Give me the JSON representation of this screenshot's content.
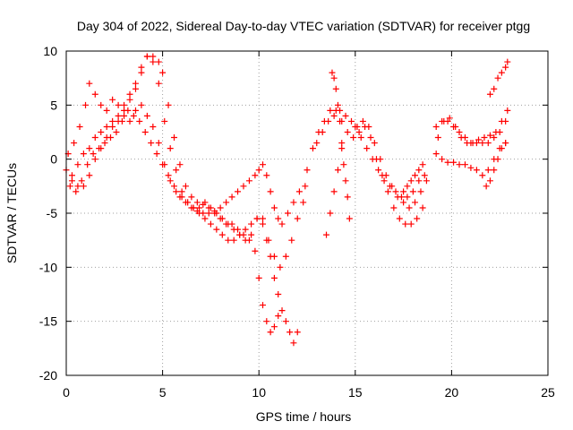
{
  "chart_data": {
    "type": "scatter",
    "title": "Day 304 of 2022, Sidereal Day-to-day VTEC variation (SDTVAR) for receiver ptgg",
    "xlabel": "GPS time / hours",
    "ylabel": "SDTVAR / TECUs",
    "xlim": [
      0,
      25
    ],
    "ylim": [
      -20,
      10
    ],
    "xticks": [
      0,
      5,
      10,
      15,
      20,
      25
    ],
    "yticks": [
      -20,
      -15,
      -10,
      -5,
      0,
      5,
      10
    ],
    "grid": true,
    "legend": "none",
    "marker": "+",
    "color": "#ff0000",
    "series": [
      {
        "x": [
          0.0,
          0.3,
          0.6,
          0.9,
          1.2,
          1.5,
          1.8,
          2.1,
          2.4,
          2.7,
          3.0,
          3.3,
          3.6,
          3.9,
          4.2,
          4.5,
          4.8,
          5.0,
          5.3,
          5.6,
          5.9,
          6.2,
          6.5,
          6.8,
          7.1,
          7.4,
          7.7,
          8.0,
          8.3,
          8.6,
          8.9,
          9.2,
          9.5,
          9.8,
          10.0,
          10.2,
          10.4,
          10.6,
          10.8,
          11.0
        ],
        "y": [
          -1.0,
          -2.0,
          -2.5,
          -2.5,
          -1.5,
          0.0,
          1.0,
          2.0,
          3.0,
          3.5,
          4.5,
          5.5,
          6.5,
          8.5,
          9.5,
          9.5,
          9.0,
          8.0,
          5.0,
          2.0,
          -0.5,
          -2.5,
          -3.5,
          -4.0,
          -4.2,
          -4.5,
          -5.0,
          -5.5,
          -6.0,
          -6.0,
          -6.5,
          -7.0,
          -7.5,
          -8.5,
          -11.0,
          -13.5,
          -15.0,
          -16.0,
          -15.5,
          -14.5
        ]
      },
      {
        "x": [
          0.1,
          0.4,
          0.7,
          1.0,
          1.2,
          1.5,
          1.8,
          2.1,
          2.4,
          2.7,
          3.0,
          3.3,
          3.6,
          3.9,
          4.2,
          4.5,
          4.8,
          5.1,
          5.4,
          5.7,
          6.0,
          6.3,
          6.6,
          6.9,
          7.2,
          7.5,
          7.8,
          8.1,
          8.4,
          8.7,
          9.0,
          9.3,
          9.6,
          9.9,
          10.2,
          10.4,
          10.6,
          10.8,
          11.0,
          11.2,
          11.4,
          11.6,
          11.8,
          12.0
        ],
        "y": [
          0.5,
          1.5,
          3.0,
          5.0,
          7.0,
          6.0,
          5.0,
          4.5,
          5.5,
          5.0,
          4.0,
          3.5,
          4.5,
          5.0,
          4.0,
          3.0,
          1.5,
          -0.5,
          -2.0,
          -3.0,
          -3.5,
          -4.0,
          -4.5,
          -4.5,
          -4.0,
          -4.5,
          -5.0,
          -5.5,
          -6.0,
          -6.5,
          -7.0,
          -7.5,
          -7.0,
          -5.5,
          -5.5,
          -7.5,
          -9.0,
          -11.0,
          -12.5,
          -14.0,
          -15.0,
          -16.0,
          -17.0,
          -16.0
        ]
      },
      {
        "x": [
          0.2,
          0.5,
          0.8,
          1.1,
          1.4,
          1.7,
          2.0,
          2.3,
          2.6,
          2.9,
          3.2,
          3.5,
          3.8,
          4.1,
          4.4,
          4.7,
          5.0,
          5.3,
          5.6,
          5.9,
          6.2,
          6.5,
          6.8,
          7.1,
          7.4,
          7.7,
          8.0,
          8.3,
          8.6,
          8.9,
          9.2,
          9.5,
          9.8,
          10.0,
          10.2,
          10.4,
          10.6,
          10.8,
          11.0,
          11.2,
          11.5,
          11.8,
          12.1,
          12.4
        ],
        "y": [
          -2.5,
          -3.0,
          -2.0,
          -0.5,
          0.5,
          1.0,
          1.5,
          2.0,
          2.5,
          3.5,
          4.5,
          4.0,
          3.5,
          2.5,
          1.5,
          0.5,
          -0.5,
          -1.5,
          -2.5,
          -3.5,
          -4.0,
          -4.5,
          -4.8,
          -5.0,
          -5.0,
          -4.8,
          -4.5,
          -4.0,
          -3.5,
          -3.0,
          -2.5,
          -2.0,
          -1.5,
          -1.0,
          -0.5,
          -1.5,
          -3.0,
          -4.5,
          -5.5,
          -6.0,
          -5.0,
          -4.0,
          -3.0,
          -2.5
        ]
      },
      {
        "x": [
          0.3,
          0.6,
          0.9,
          1.2,
          1.5,
          1.8,
          2.1,
          2.4,
          2.7,
          3.0,
          3.3,
          3.6,
          3.9,
          4.2,
          4.5,
          4.8,
          5.1,
          5.4,
          5.7,
          6.0,
          6.3,
          6.6,
          6.9,
          7.2,
          7.5,
          7.8,
          8.1,
          8.4,
          8.7,
          9.0,
          9.3,
          9.6,
          9.9,
          10.2,
          10.5,
          10.8,
          11.1,
          11.4,
          11.7,
          12.0,
          12.3
        ],
        "y": [
          -1.5,
          -0.5,
          0.5,
          1.0,
          2.0,
          2.5,
          3.0,
          3.5,
          4.0,
          5.0,
          6.0,
          7.0,
          8.0,
          9.5,
          9.0,
          7.0,
          3.5,
          1.0,
          -1.0,
          -3.0,
          -4.0,
          -4.5,
          -5.0,
          -5.5,
          -6.0,
          -6.5,
          -7.0,
          -7.5,
          -7.5,
          -7.0,
          -6.5,
          -6.0,
          -5.5,
          -6.0,
          -7.5,
          -9.0,
          -10.0,
          -9.0,
          -7.5,
          -5.5,
          -4.0
        ]
      },
      {
        "x": [
          12.5,
          12.8,
          13.1,
          13.4,
          13.7,
          14.0,
          14.3,
          14.6,
          14.9,
          15.2,
          15.5,
          15.8,
          16.1,
          16.4,
          16.7,
          17.0,
          17.3,
          17.6,
          17.9,
          18.2,
          18.5
        ],
        "y": [
          -1.0,
          1.0,
          2.5,
          3.5,
          4.5,
          4.5,
          3.5,
          2.5,
          2.0,
          2.5,
          3.0,
          2.0,
          0.0,
          -1.5,
          -3.0,
          -4.5,
          -5.5,
          -6.0,
          -6.0,
          -5.5,
          -4.5
        ]
      },
      {
        "x": [
          13.0,
          13.3,
          13.6,
          13.9,
          14.2,
          14.5,
          14.8,
          15.1,
          15.4,
          15.7,
          16.0,
          16.3,
          16.6,
          16.9,
          17.2,
          17.5,
          17.8,
          18.1,
          18.4,
          18.7
        ],
        "y": [
          1.5,
          2.5,
          3.5,
          4.0,
          4.5,
          4.0,
          3.5,
          3.0,
          3.5,
          3.0,
          1.5,
          0.0,
          -1.5,
          -2.5,
          -3.5,
          -4.0,
          -4.5,
          -4.0,
          -3.0,
          -2.0
        ]
      },
      {
        "x": [
          13.5,
          13.7,
          13.9,
          14.1,
          14.3
        ],
        "y": [
          -7.0,
          -5.0,
          -3.0,
          -1.0,
          1.0
        ]
      },
      {
        "x": [
          13.8,
          13.9,
          14.0,
          14.1,
          14.2,
          14.3,
          14.4,
          14.5,
          14.6,
          14.7
        ],
        "y": [
          8.0,
          7.5,
          6.5,
          5.0,
          3.5,
          1.5,
          -0.5,
          -2.0,
          -3.5,
          -5.5
        ]
      },
      {
        "x": [
          15.0,
          15.3,
          15.6,
          15.9,
          16.2,
          16.5,
          16.8,
          17.1,
          17.4,
          17.7,
          18.0,
          18.3,
          18.6
        ],
        "y": [
          3.0,
          2.0,
          1.0,
          0.0,
          -1.0,
          -2.0,
          -2.5,
          -3.0,
          -3.5,
          -3.5,
          -3.0,
          -2.0,
          -1.5
        ]
      },
      {
        "x": [
          17.5,
          17.7,
          17.9,
          18.1,
          18.3,
          18.5
        ],
        "y": [
          -3.0,
          -2.5,
          -2.0,
          -1.5,
          -1.0,
          -0.5
        ]
      },
      {
        "x": [
          19.2,
          19.5,
          19.8,
          20.1,
          20.4,
          20.7,
          21.0,
          21.3,
          21.6,
          21.9,
          22.2,
          22.5,
          22.8
        ],
        "y": [
          0.5,
          0.0,
          -0.3,
          -0.3,
          -0.5,
          -0.5,
          -0.8,
          -1.0,
          -1.5,
          -1.0,
          0.0,
          1.0,
          1.5
        ]
      },
      {
        "x": [
          19.2,
          19.5,
          19.8,
          20.1,
          20.4,
          20.7,
          21.0,
          21.3,
          21.6,
          21.9,
          22.2,
          22.5,
          22.8
        ],
        "y": [
          3.0,
          3.5,
          3.5,
          3.0,
          2.5,
          2.0,
          1.5,
          1.5,
          1.5,
          1.5,
          2.0,
          2.5,
          3.5
        ]
      },
      {
        "x": [
          19.3,
          19.6,
          19.9,
          20.2,
          20.5,
          20.8,
          21.1,
          21.4,
          21.7,
          22.0,
          22.3,
          22.6,
          22.9
        ],
        "y": [
          2.0,
          3.5,
          3.8,
          3.0,
          2.0,
          1.5,
          1.5,
          1.8,
          2.0,
          2.2,
          2.5,
          3.5,
          4.5
        ]
      },
      {
        "x": [
          21.8,
          22.0,
          22.2,
          22.4,
          22.6,
          22.8
        ],
        "y": [
          -2.5,
          -2.0,
          -1.0,
          0.0,
          1.0,
          1.5
        ]
      },
      {
        "x": [
          22.0,
          22.2,
          22.4,
          22.6,
          22.8,
          22.9
        ],
        "y": [
          6.0,
          6.5,
          7.5,
          8.0,
          8.5,
          9.0
        ]
      }
    ]
  }
}
